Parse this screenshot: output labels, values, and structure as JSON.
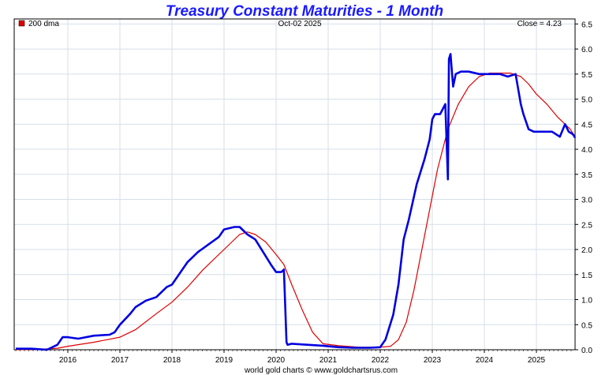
{
  "chart_data": {
    "type": "line",
    "title": "Treasury Constant Maturities - 1 Month",
    "header": {
      "legend": "200 dma",
      "date": "Oct-02  2025",
      "close": "Close = 4.23"
    },
    "footer": "world gold charts © www.goldchartsrus.com",
    "ylim": [
      0,
      6.6
    ],
    "y_ticks": [
      "0.0",
      "0.5",
      "1.0",
      "1.5",
      "2.0",
      "2.5",
      "3.0",
      "3.5",
      "4.0",
      "4.5",
      "5.0",
      "5.5",
      "6.0",
      "6.5"
    ],
    "x_ticks": [
      "2016",
      "2017",
      "2018",
      "2019",
      "2020",
      "2021",
      "2022",
      "2023",
      "2024",
      "2025"
    ],
    "grid": true,
    "legend_position": "top-left",
    "colors": {
      "series": "#0000e0",
      "dma": "#e00000",
      "title": "#1a1aff",
      "grid": "#d6dfe8"
    },
    "series": [
      {
        "name": "1 Month",
        "x": [
          2015.0,
          2015.3,
          2015.6,
          2015.8,
          2015.9,
          2016.0,
          2016.2,
          2016.5,
          2016.8,
          2016.9,
          2017.0,
          2017.2,
          2017.3,
          2017.5,
          2017.7,
          2017.9,
          2018.0,
          2018.2,
          2018.3,
          2018.5,
          2018.7,
          2018.9,
          2019.0,
          2019.2,
          2019.3,
          2019.45,
          2019.6,
          2019.75,
          2019.9,
          2020.0,
          2020.1,
          2020.15,
          2020.2,
          2020.22,
          2020.3,
          2020.6,
          2020.9,
          2021.2,
          2021.5,
          2021.8,
          2022.0,
          2022.1,
          2022.25,
          2022.35,
          2022.45,
          2022.55,
          2022.7,
          2022.85,
          2022.95,
          2023.0,
          2023.05,
          2023.15,
          2023.25,
          2023.3,
          2023.32,
          2023.35,
          2023.38,
          2023.4,
          2023.45,
          2023.55,
          2023.7,
          2023.9,
          2024.1,
          2024.3,
          2024.45,
          2024.6,
          2024.65,
          2024.7,
          2024.75,
          2024.85,
          2024.95,
          2025.1,
          2025.3,
          2025.45,
          2025.55,
          2025.62,
          2025.7,
          2025.75
        ],
        "values": [
          0.02,
          0.02,
          0.0,
          0.1,
          0.25,
          0.25,
          0.22,
          0.28,
          0.3,
          0.35,
          0.5,
          0.72,
          0.85,
          0.98,
          1.05,
          1.25,
          1.3,
          1.6,
          1.75,
          1.95,
          2.1,
          2.25,
          2.4,
          2.45,
          2.45,
          2.3,
          2.2,
          1.95,
          1.7,
          1.55,
          1.55,
          1.6,
          0.15,
          0.1,
          0.12,
          0.1,
          0.08,
          0.05,
          0.04,
          0.04,
          0.05,
          0.2,
          0.7,
          1.3,
          2.2,
          2.6,
          3.3,
          3.8,
          4.2,
          4.6,
          4.7,
          4.7,
          4.9,
          3.4,
          5.8,
          5.9,
          5.5,
          5.25,
          5.5,
          5.55,
          5.55,
          5.5,
          5.5,
          5.5,
          5.45,
          5.5,
          5.2,
          4.9,
          4.7,
          4.4,
          4.35,
          4.35,
          4.35,
          4.25,
          4.5,
          4.35,
          4.3,
          4.23
        ]
      },
      {
        "name": "200 dma",
        "x": [
          2015.0,
          2015.5,
          2015.8,
          2016.0,
          2016.5,
          2017.0,
          2017.3,
          2017.7,
          2018.0,
          2018.3,
          2018.6,
          2019.0,
          2019.3,
          2019.45,
          2019.6,
          2019.8,
          2020.0,
          2020.15,
          2020.3,
          2020.5,
          2020.7,
          2020.9,
          2021.2,
          2021.6,
          2022.0,
          2022.2,
          2022.35,
          2022.5,
          2022.65,
          2022.8,
          2022.95,
          2023.1,
          2023.3,
          2023.5,
          2023.7,
          2023.9,
          2024.1,
          2024.3,
          2024.5,
          2024.7,
          2024.85,
          2025.0,
          2025.2,
          2025.4,
          2025.55,
          2025.65,
          2025.75
        ],
        "values": [
          0.0,
          0.01,
          0.03,
          0.07,
          0.15,
          0.25,
          0.4,
          0.72,
          0.95,
          1.25,
          1.6,
          2.0,
          2.3,
          2.35,
          2.3,
          2.15,
          1.9,
          1.7,
          1.3,
          0.8,
          0.35,
          0.12,
          0.08,
          0.05,
          0.05,
          0.07,
          0.2,
          0.55,
          1.2,
          2.0,
          2.8,
          3.6,
          4.4,
          4.9,
          5.25,
          5.45,
          5.52,
          5.52,
          5.52,
          5.45,
          5.3,
          5.1,
          4.9,
          4.65,
          4.5,
          4.4,
          4.25
        ]
      }
    ]
  }
}
